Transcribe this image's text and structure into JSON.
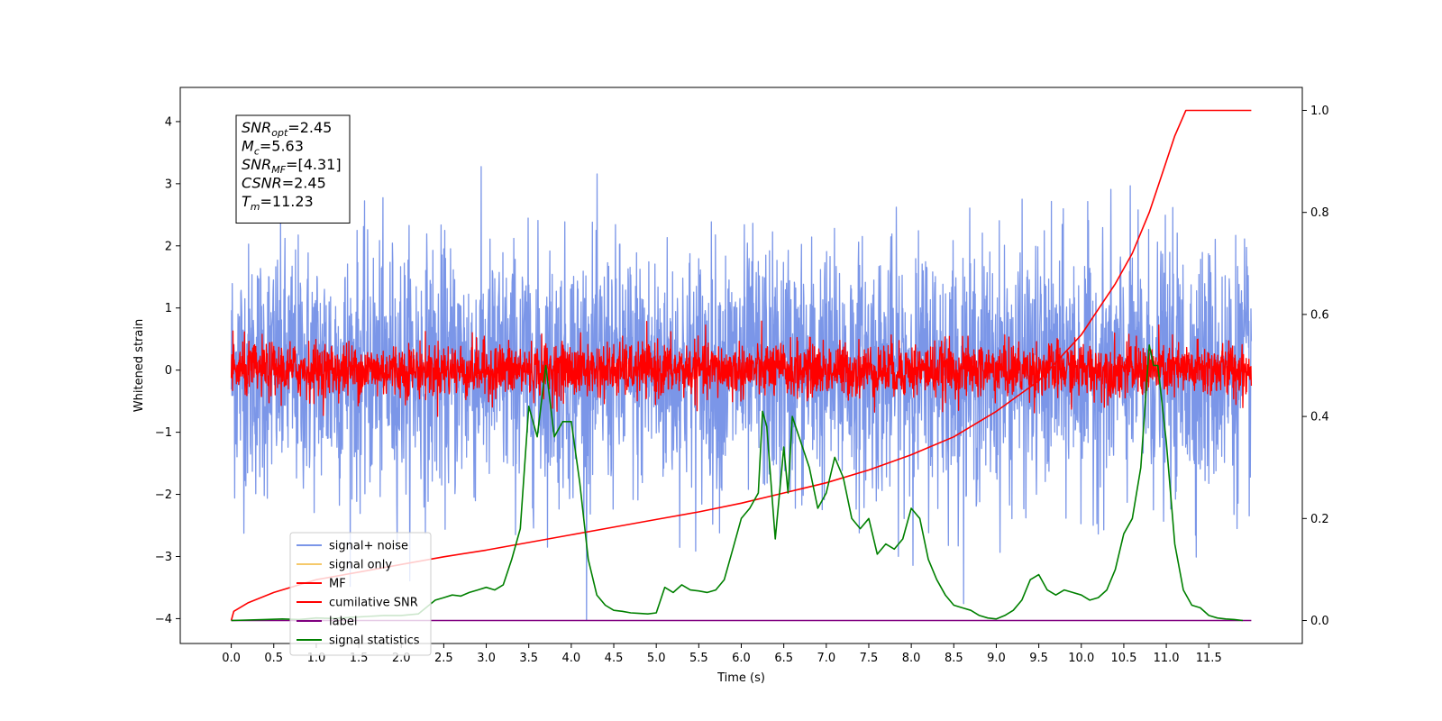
{
  "chart_data": {
    "type": "line",
    "xlabel": "Time (s)",
    "ylabel": "Whitened strain",
    "xlim": [
      -0.6,
      12.6
    ],
    "ylim": [
      -4.4,
      4.55
    ],
    "y2lim": [
      -0.045,
      1.045
    ],
    "x_ticks": [
      "0.0",
      "0.5",
      "1.0",
      "1.5",
      "2.0",
      "2.5",
      "3.0",
      "3.5",
      "4.0",
      "4.5",
      "5.0",
      "5.5",
      "6.0",
      "6.5",
      "7.0",
      "7.5",
      "8.0",
      "8.5",
      "9.0",
      "9.5",
      "10.0",
      "10.5",
      "11.0",
      "11.5"
    ],
    "y_ticks": [
      "4",
      "3",
      "2",
      "1",
      "0",
      "−1",
      "−2",
      "−3",
      "−4"
    ],
    "y2_ticks": [
      "1.0",
      "0.8",
      "0.6",
      "0.4",
      "0.2",
      "0.0"
    ],
    "annotation": {
      "lines": [
        {
          "sym": "SNR",
          "sub": "opt",
          "value": "=2.45"
        },
        {
          "sym": "M",
          "sub": "c",
          "value": "=5.63"
        },
        {
          "sym": "SNR",
          "sub": "MF",
          "value": "=[4.31]"
        },
        {
          "sym": "CSNR",
          "sub": "",
          "value": "=2.45"
        },
        {
          "sym": "T",
          "sub": "m",
          "value": "=11.23"
        }
      ]
    },
    "legend": {
      "position": "lower-left",
      "entries": [
        {
          "label": "signal+ noise",
          "color": "#7b96e8"
        },
        {
          "label": "signal only",
          "color": "#f5c96b"
        },
        {
          "label": "MF",
          "color": "#ff0000"
        },
        {
          "label": "cumilative SNR",
          "color": "#ff0000"
        },
        {
          "label": "label",
          "color": "#800080"
        },
        {
          "label": "signal statistics",
          "color": "#008000"
        }
      ]
    },
    "series": [
      {
        "name": "signal+ noise",
        "axis": "left",
        "kind": "noise",
        "x_range": [
          0,
          12
        ],
        "std": 1.0,
        "peaks_max": 4.15,
        "color": "#7b96e8"
      },
      {
        "name": "signal only",
        "axis": "left",
        "kind": "flat",
        "color": "#f5c96b"
      },
      {
        "name": "MF",
        "axis": "left",
        "kind": "noise",
        "x_range": [
          0,
          12
        ],
        "std": 0.22,
        "peaks_max": 0.95,
        "color": "#ff0000"
      },
      {
        "name": "cumilative SNR",
        "axis": "right",
        "kind": "curve",
        "color": "#ff0000",
        "x": [
          0.0,
          0.03,
          0.2,
          0.5,
          1.0,
          1.5,
          2.0,
          2.5,
          3.0,
          3.5,
          4.0,
          4.5,
          5.0,
          5.5,
          6.0,
          6.5,
          7.0,
          7.5,
          8.0,
          8.5,
          9.0,
          9.5,
          10.0,
          10.2,
          10.4,
          10.6,
          10.8,
          10.9,
          11.0,
          11.1,
          11.23,
          12.0
        ],
        "y": [
          0.0,
          0.018,
          0.035,
          0.055,
          0.08,
          0.095,
          0.11,
          0.125,
          0.138,
          0.153,
          0.168,
          0.183,
          0.198,
          0.213,
          0.23,
          0.25,
          0.27,
          0.295,
          0.325,
          0.36,
          0.41,
          0.47,
          0.56,
          0.61,
          0.66,
          0.72,
          0.8,
          0.85,
          0.9,
          0.95,
          1.0,
          1.0
        ]
      },
      {
        "name": "label",
        "axis": "right",
        "kind": "curve",
        "color": "#800080",
        "x": [
          0.0,
          12.0
        ],
        "y": [
          0.0,
          0.0
        ]
      },
      {
        "name": "signal statistics",
        "axis": "right",
        "kind": "curve",
        "color": "#008000",
        "x": [
          0.0,
          0.4,
          0.6,
          0.8,
          1.0,
          1.2,
          1.4,
          1.6,
          1.8,
          2.0,
          2.2,
          2.4,
          2.5,
          2.6,
          2.7,
          2.8,
          2.9,
          3.0,
          3.1,
          3.2,
          3.3,
          3.4,
          3.5,
          3.6,
          3.7,
          3.8,
          3.9,
          4.0,
          4.1,
          4.2,
          4.3,
          4.4,
          4.5,
          4.6,
          4.7,
          4.8,
          4.9,
          5.0,
          5.1,
          5.2,
          5.3,
          5.4,
          5.5,
          5.6,
          5.7,
          5.8,
          5.9,
          6.0,
          6.1,
          6.2,
          6.25,
          6.3,
          6.4,
          6.5,
          6.55,
          6.6,
          6.7,
          6.8,
          6.9,
          7.0,
          7.1,
          7.2,
          7.3,
          7.4,
          7.5,
          7.6,
          7.7,
          7.8,
          7.9,
          8.0,
          8.1,
          8.2,
          8.3,
          8.4,
          8.5,
          8.6,
          8.7,
          8.8,
          8.9,
          9.0,
          9.1,
          9.2,
          9.3,
          9.4,
          9.5,
          9.6,
          9.7,
          9.8,
          9.9,
          10.0,
          10.1,
          10.2,
          10.3,
          10.4,
          10.5,
          10.6,
          10.7,
          10.8,
          10.85,
          10.9,
          11.0,
          11.1,
          11.2,
          11.3,
          11.4,
          11.5,
          11.6,
          11.7,
          11.8,
          11.9
        ],
        "y": [
          0.0,
          0.002,
          0.003,
          0.002,
          0.005,
          0.004,
          0.006,
          0.008,
          0.01,
          0.01,
          0.013,
          0.04,
          0.045,
          0.05,
          0.048,
          0.055,
          0.06,
          0.065,
          0.06,
          0.07,
          0.12,
          0.18,
          0.42,
          0.36,
          0.5,
          0.36,
          0.39,
          0.39,
          0.27,
          0.12,
          0.05,
          0.03,
          0.02,
          0.018,
          0.015,
          0.014,
          0.013,
          0.015,
          0.065,
          0.055,
          0.07,
          0.06,
          0.058,
          0.055,
          0.06,
          0.08,
          0.14,
          0.2,
          0.22,
          0.25,
          0.41,
          0.38,
          0.16,
          0.34,
          0.25,
          0.4,
          0.35,
          0.3,
          0.22,
          0.25,
          0.32,
          0.28,
          0.2,
          0.18,
          0.2,
          0.13,
          0.15,
          0.14,
          0.16,
          0.22,
          0.2,
          0.12,
          0.08,
          0.05,
          0.03,
          0.025,
          0.02,
          0.01,
          0.005,
          0.003,
          0.01,
          0.02,
          0.04,
          0.08,
          0.09,
          0.06,
          0.05,
          0.06,
          0.055,
          0.05,
          0.04,
          0.045,
          0.06,
          0.1,
          0.17,
          0.2,
          0.3,
          0.54,
          0.5,
          0.5,
          0.35,
          0.15,
          0.06,
          0.03,
          0.025,
          0.01,
          0.005,
          0.003,
          0.002,
          0.0
        ]
      }
    ]
  }
}
